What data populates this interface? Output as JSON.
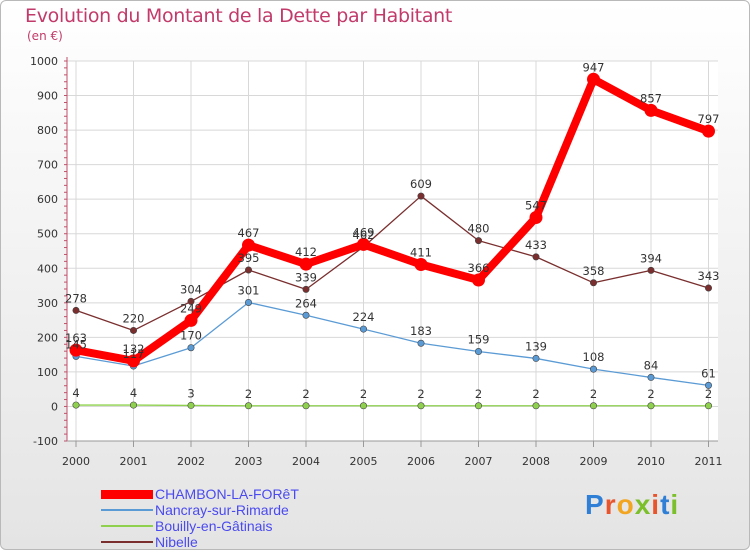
{
  "title": "Evolution du Montant de la Dette par Habitant",
  "subtitle": "(en €)",
  "logo_text": "Proxiti",
  "chart_data": {
    "type": "line",
    "x": [
      "2000",
      "2001",
      "2002",
      "2003",
      "2004",
      "2005",
      "2006",
      "2007",
      "2008",
      "2009",
      "2010",
      "2011"
    ],
    "ylim": [
      -100,
      1000
    ],
    "yticks": [
      -100,
      0,
      100,
      200,
      300,
      400,
      500,
      600,
      700,
      800,
      900,
      1000
    ],
    "grid": true,
    "legend_position": "bottom-left",
    "series": [
      {
        "name": "CHAMBON-LA-FORêT",
        "color": "#ff0000",
        "values": [
          163,
          132,
          249,
          467,
          412,
          469,
          411,
          366,
          547,
          947,
          857,
          797
        ]
      },
      {
        "name": "Nancray-sur-Rimarde",
        "color": "#5b9bd5",
        "values": [
          145,
          117,
          170,
          301,
          264,
          224,
          183,
          159,
          139,
          108,
          84,
          61
        ]
      },
      {
        "name": "Bouilly-en-Gâtinais",
        "color": "#8fd14f",
        "values": [
          4,
          4,
          3,
          2,
          2,
          2,
          2,
          2,
          2,
          2,
          2,
          2
        ]
      },
      {
        "name": "Nibelle",
        "color": "#7a2e2e",
        "values": [
          278,
          220,
          304,
          395,
          339,
          462,
          609,
          480,
          433,
          358,
          394,
          343
        ]
      }
    ]
  }
}
